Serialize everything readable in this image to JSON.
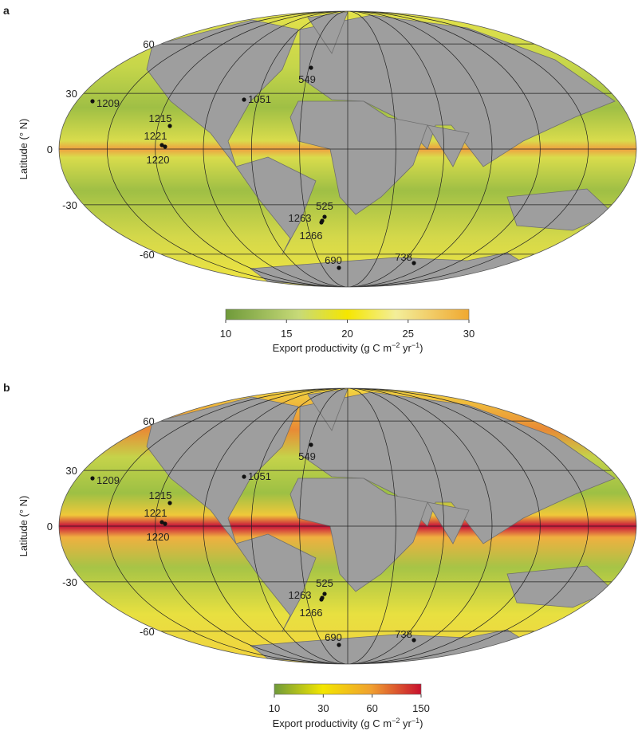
{
  "panels": [
    {
      "label": "a",
      "y_axis_label": "Latitude (° N)",
      "yticks": [
        60,
        30,
        0,
        -30,
        -60
      ],
      "sites": [
        "549",
        "1209",
        "1051",
        "1215",
        "1221",
        "1220",
        "525",
        "1263",
        "1266",
        "690",
        "738"
      ],
      "colorbar": {
        "ticks": [
          10,
          15,
          20,
          25,
          30
        ],
        "label_parts": [
          "Export productivity (g C m",
          "−2",
          " yr",
          "−1",
          ")"
        ]
      }
    },
    {
      "label": "b",
      "y_axis_label": "Latitude (° N)",
      "yticks": [
        60,
        30,
        0,
        -30,
        -60
      ],
      "sites": [
        "549",
        "1209",
        "1051",
        "1215",
        "1221",
        "1220",
        "525",
        "1263",
        "1266",
        "690",
        "738"
      ],
      "colorbar": {
        "ticks": [
          10,
          30,
          60,
          150
        ],
        "label_parts": [
          "Export productivity (g C m",
          "−2",
          " yr",
          "−1",
          ")"
        ]
      }
    }
  ]
}
